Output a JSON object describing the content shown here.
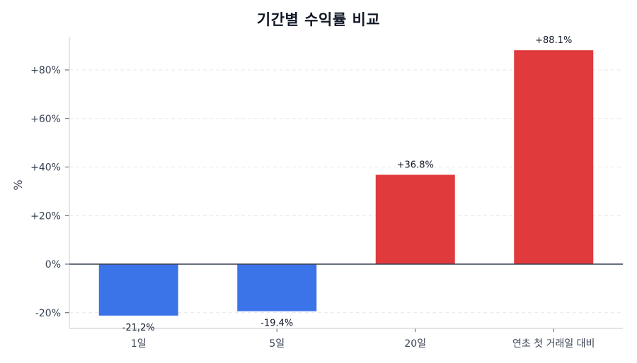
{
  "chart_data": {
    "type": "bar",
    "title": "기간별 수익률 비교",
    "xlabel": "",
    "ylabel": "%",
    "categories": [
      "1일",
      "5일",
      "20일",
      "연초 첫 거래일 대비"
    ],
    "values": [
      -21.2,
      -19.4,
      36.8,
      88.1
    ],
    "value_labels": [
      "-21.2%",
      "-19.4%",
      "+36.8%",
      "+88.1%"
    ],
    "ylim": [
      -27,
      95
    ],
    "yticks": [
      -20,
      0,
      20,
      40,
      60,
      80
    ],
    "ytick_labels": [
      "-20%",
      "0%",
      "+20%",
      "+40%",
      "+60%",
      "+80%"
    ],
    "grid": "horizontal dashed",
    "legend": null,
    "colors": {
      "positive": "#e03a3c",
      "negative": "#3b73e8",
      "zero_line": "#374151",
      "grid": "#e5e7eb",
      "axis": "#d1d5db"
    }
  }
}
